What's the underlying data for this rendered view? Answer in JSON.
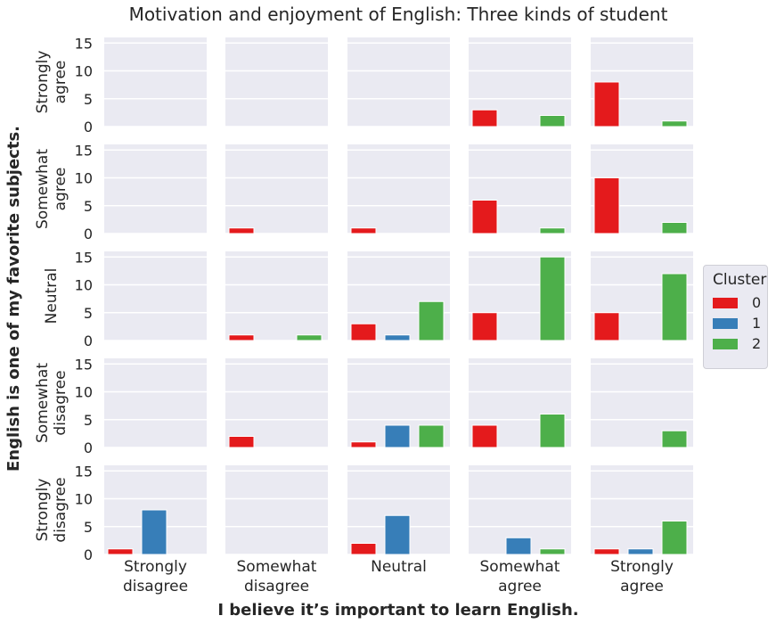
{
  "chart_data": {
    "type": "bar",
    "title": "Motivation and enjoyment of English: Three kinds of student",
    "xlabel": "I believe it’s important to learn English.",
    "ylabel": "English is one of my favorite subjects.",
    "col_labels": [
      [
        "Strongly",
        "disagree"
      ],
      [
        "Somewhat",
        "disagree"
      ],
      [
        "Neutral"
      ],
      [
        "Somewhat",
        "agree"
      ],
      [
        "Strongly",
        "agree"
      ]
    ],
    "row_labels": [
      [
        "Strongly",
        "agree"
      ],
      [
        "Somewhat",
        "agree"
      ],
      [
        "Neutral"
      ],
      [
        "Somewhat",
        "disagree"
      ],
      [
        "Strongly",
        "disagree"
      ]
    ],
    "ylim": [
      0,
      16
    ],
    "yticks": [
      0,
      5,
      10,
      15
    ],
    "series": [
      {
        "name": "0",
        "color": "#e41a1c"
      },
      {
        "name": "1",
        "color": "#377eb8"
      },
      {
        "name": "2",
        "color": "#4daf4a"
      }
    ],
    "legend": {
      "title": "Cluster",
      "position": "right"
    },
    "grid": true,
    "values": [
      [
        [
          0,
          0,
          0
        ],
        [
          0,
          0,
          0
        ],
        [
          0,
          0,
          0
        ],
        [
          3,
          0,
          2
        ],
        [
          8,
          0,
          1
        ]
      ],
      [
        [
          0,
          0,
          0
        ],
        [
          1,
          0,
          0
        ],
        [
          1,
          0,
          0
        ],
        [
          6,
          0,
          1
        ],
        [
          10,
          0,
          2
        ]
      ],
      [
        [
          0,
          0,
          0
        ],
        [
          1,
          0,
          1
        ],
        [
          3,
          1,
          7
        ],
        [
          5,
          0,
          15
        ],
        [
          5,
          0,
          12
        ]
      ],
      [
        [
          0,
          0,
          0
        ],
        [
          2,
          0,
          0
        ],
        [
          1,
          4,
          4
        ],
        [
          4,
          0,
          6
        ],
        [
          0,
          0,
          3
        ]
      ],
      [
        [
          1,
          8,
          0
        ],
        [
          0,
          0,
          0
        ],
        [
          2,
          7,
          0
        ],
        [
          0,
          3,
          1
        ],
        [
          1,
          1,
          6
        ]
      ]
    ]
  }
}
